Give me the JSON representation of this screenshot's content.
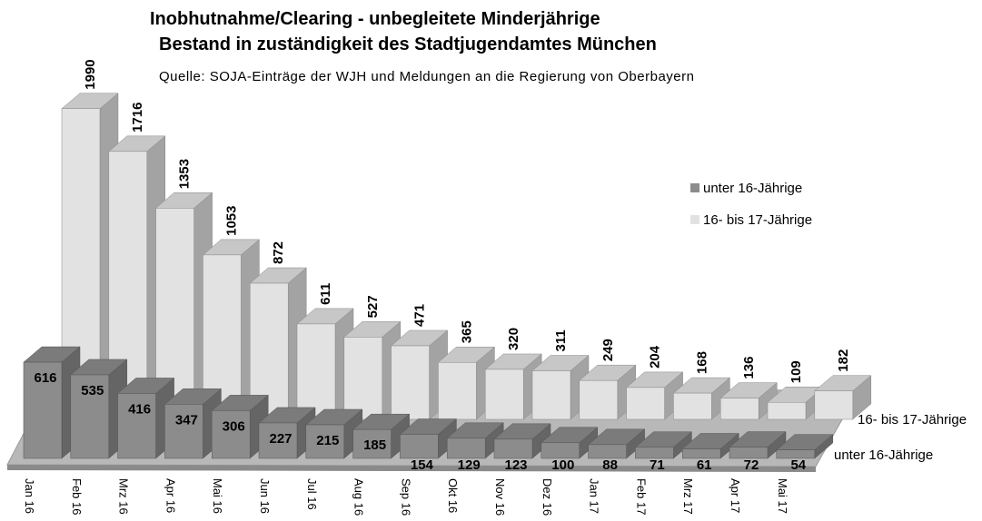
{
  "chart_data": {
    "type": "bar3d",
    "title": "Inobhutnahme/Clearing - unbegleitete Minderjährige",
    "subtitle": "Bestand in zuständigkeit des Stadtjugendamtes München",
    "source": "Quelle: SOJA-Einträge der WJH und Meldungen an die Regierung von Oberbayern",
    "categories": [
      "Jan 16",
      "Feb 16",
      "Mrz 16",
      "Apr 16",
      "Mai 16",
      "Jun 16",
      "Jul 16",
      "Aug 16",
      "Sep 16",
      "Okt 16",
      "Nov 16",
      "Dez 16",
      "Jan 17",
      "Feb 17",
      "Mrz 17",
      "Apr 17",
      "Mai 17"
    ],
    "series": [
      {
        "name": "unter 16-Jährige",
        "color": "#8c8c8c",
        "values": [
          616,
          535,
          416,
          347,
          306,
          227,
          215,
          185,
          154,
          129,
          123,
          100,
          88,
          71,
          61,
          72,
          54
        ]
      },
      {
        "name": "16- bis 17-Jährige",
        "color": "#e2e2e2",
        "values": [
          1990,
          1716,
          1353,
          1053,
          872,
          611,
          527,
          471,
          365,
          320,
          311,
          249,
          204,
          168,
          136,
          109,
          182
        ]
      }
    ]
  }
}
